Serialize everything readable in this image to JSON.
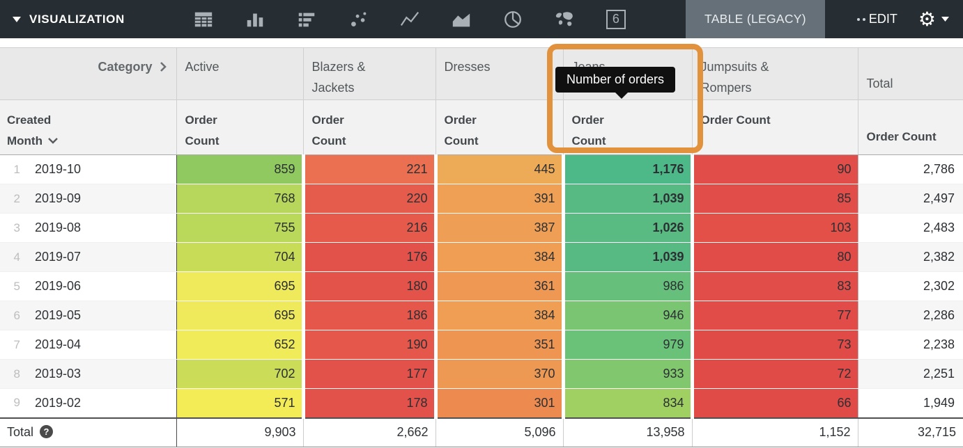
{
  "toolbar": {
    "visualization_label": "VISUALIZATION",
    "viz_types": [
      "table",
      "column",
      "bar",
      "scatter",
      "line",
      "area",
      "pie",
      "map",
      "single-value"
    ],
    "single_value_glyph": "6",
    "selected_viz_label": "TABLE (LEGACY)",
    "edit_label": "EDIT"
  },
  "tooltip": {
    "text": "Number of orders"
  },
  "colors": {
    "toolbar_bg": "#262d33",
    "selected_tab_bg": "#667079",
    "highlight_ring": "#e2923c",
    "tooltip_bg": "#101010"
  },
  "table": {
    "corner_label": "Category",
    "row_dimension_label": "Created Month",
    "columns": [
      {
        "label": "Active",
        "measure": "Order Count"
      },
      {
        "label": "Blazers & Jackets",
        "measure": "Order Count"
      },
      {
        "label": "Dresses",
        "measure": "Order Count"
      },
      {
        "label": "Jeans",
        "measure": "Order Count"
      },
      {
        "label": "Jumpsuits & Rompers",
        "measure": "Order Count"
      },
      {
        "label": "Total",
        "measure": "Order Count"
      }
    ],
    "rows": [
      {
        "index": "1",
        "month": "2019-10",
        "cells": [
          {
            "text": "859",
            "bg": "#90c95f"
          },
          {
            "text": "221",
            "bg": "#eb6f51"
          },
          {
            "text": "445",
            "bg": "#edaa57"
          },
          {
            "text": "1,176",
            "bg": "#4db888",
            "bold": true
          },
          {
            "text": "90",
            "bg": "#e14e49"
          }
        ],
        "total": "2,786"
      },
      {
        "index": "2",
        "month": "2019-09",
        "cells": [
          {
            "text": "768",
            "bg": "#b6d75b"
          },
          {
            "text": "220",
            "bg": "#e65c4c"
          },
          {
            "text": "391",
            "bg": "#efa055"
          },
          {
            "text": "1,039",
            "bg": "#57ba83",
            "bold": true
          },
          {
            "text": "85",
            "bg": "#e14d49"
          }
        ],
        "total": "2,497"
      },
      {
        "index": "3",
        "month": "2019-08",
        "cells": [
          {
            "text": "755",
            "bg": "#bad85a"
          },
          {
            "text": "216",
            "bg": "#e65a4c"
          },
          {
            "text": "387",
            "bg": "#ef9f55"
          },
          {
            "text": "1,026",
            "bg": "#59bb82",
            "bold": true
          },
          {
            "text": "103",
            "bg": "#e25048"
          }
        ],
        "total": "2,483"
      },
      {
        "index": "4",
        "month": "2019-07",
        "cells": [
          {
            "text": "704",
            "bg": "#c9dc57"
          },
          {
            "text": "176",
            "bg": "#e3524a"
          },
          {
            "text": "384",
            "bg": "#ef9e54"
          },
          {
            "text": "1,039",
            "bg": "#57ba83",
            "bold": true
          },
          {
            "text": "80",
            "bg": "#e14c48"
          }
        ],
        "total": "2,382"
      },
      {
        "index": "5",
        "month": "2019-06",
        "cells": [
          {
            "text": "695",
            "bg": "#eeea5b"
          },
          {
            "text": "180",
            "bg": "#e4534a"
          },
          {
            "text": "361",
            "bg": "#ee9853"
          },
          {
            "text": "986",
            "bg": "#66c07b"
          },
          {
            "text": "83",
            "bg": "#e14d49"
          }
        ],
        "total": "2,302"
      },
      {
        "index": "6",
        "month": "2019-05",
        "cells": [
          {
            "text": "695",
            "bg": "#eeea5b"
          },
          {
            "text": "186",
            "bg": "#e5564b"
          },
          {
            "text": "384",
            "bg": "#ef9e54"
          },
          {
            "text": "946",
            "bg": "#79c571"
          },
          {
            "text": "77",
            "bg": "#e14c48"
          }
        ],
        "total": "2,286"
      },
      {
        "index": "7",
        "month": "2019-04",
        "cells": [
          {
            "text": "652",
            "bg": "#f0eb59"
          },
          {
            "text": "190",
            "bg": "#e6574b"
          },
          {
            "text": "351",
            "bg": "#ee9552"
          },
          {
            "text": "979",
            "bg": "#6ac278"
          },
          {
            "text": "73",
            "bg": "#e04b48"
          }
        ],
        "total": "2,238"
      },
      {
        "index": "8",
        "month": "2019-03",
        "cells": [
          {
            "text": "702",
            "bg": "#cadc58"
          },
          {
            "text": "177",
            "bg": "#e3524a"
          },
          {
            "text": "370",
            "bg": "#ee9953"
          },
          {
            "text": "933",
            "bg": "#80c76d"
          },
          {
            "text": "72",
            "bg": "#e04b48"
          }
        ],
        "total": "2,251"
      },
      {
        "index": "9",
        "month": "2019-02",
        "cells": [
          {
            "text": "571",
            "bg": "#f3ec57"
          },
          {
            "text": "178",
            "bg": "#e3524a"
          },
          {
            "text": "301",
            "bg": "#ec8a4f"
          },
          {
            "text": "834",
            "bg": "#9fd061"
          },
          {
            "text": "66",
            "bg": "#e04a47"
          }
        ],
        "total": "1,949"
      }
    ],
    "total_row": {
      "label": "Total",
      "values": [
        "9,903",
        "2,662",
        "5,096",
        "13,958",
        "1,152",
        "32,715"
      ]
    }
  }
}
